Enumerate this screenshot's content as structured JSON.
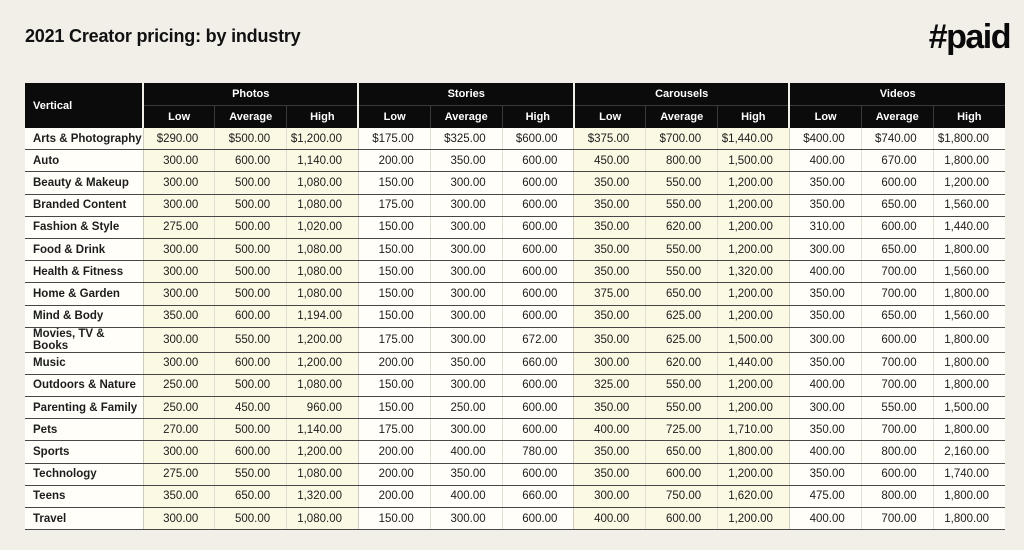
{
  "page": {
    "title": "2021 Creator pricing: by industry",
    "logo": "#paid"
  },
  "colors": {
    "background": "#f2efe9",
    "header_bg": "#0b0b0b",
    "header_text": "#ffffff",
    "tinted_column_bg": "#fbf8e3",
    "cell_bg": "#fffef9",
    "row_divider": "#474747",
    "text": "#1c1c1c"
  },
  "table": {
    "corner_header": "Vertical",
    "groups": [
      "Photos",
      "Stories",
      "Carousels",
      "Videos"
    ],
    "sub_columns": [
      "Low",
      "Average",
      "High"
    ],
    "tinted_groups": [
      "Photos",
      "Carousels"
    ],
    "rows": [
      {
        "label": "Arts & Photography",
        "values": [
          "$290.00",
          "$500.00",
          "$1,200.00",
          "$175.00",
          "$325.00",
          "$600.00",
          "$375.00",
          "$700.00",
          "$1,440.00",
          "$400.00",
          "$740.00",
          "$1,800.00"
        ]
      },
      {
        "label": "Auto",
        "values": [
          "300.00",
          "600.00",
          "1,140.00",
          "200.00",
          "350.00",
          "600.00",
          "450.00",
          "800.00",
          "1,500.00",
          "400.00",
          "670.00",
          "1,800.00"
        ]
      },
      {
        "label": "Beauty & Makeup",
        "values": [
          "300.00",
          "500.00",
          "1,080.00",
          "150.00",
          "300.00",
          "600.00",
          "350.00",
          "550.00",
          "1,200.00",
          "350.00",
          "600.00",
          "1,200.00"
        ]
      },
      {
        "label": "Branded Content",
        "values": [
          "300.00",
          "500.00",
          "1,080.00",
          "175.00",
          "300.00",
          "600.00",
          "350.00",
          "550.00",
          "1,200.00",
          "350.00",
          "650.00",
          "1,560.00"
        ]
      },
      {
        "label": "Fashion & Style",
        "values": [
          "275.00",
          "500.00",
          "1,020.00",
          "150.00",
          "300.00",
          "600.00",
          "350.00",
          "620.00",
          "1,200.00",
          "310.00",
          "600.00",
          "1,440.00"
        ]
      },
      {
        "label": "Food & Drink",
        "values": [
          "300.00",
          "500.00",
          "1,080.00",
          "150.00",
          "300.00",
          "600.00",
          "350.00",
          "550.00",
          "1,200.00",
          "300.00",
          "650.00",
          "1,800.00"
        ]
      },
      {
        "label": "Health & Fitness",
        "values": [
          "300.00",
          "500.00",
          "1,080.00",
          "150.00",
          "300.00",
          "600.00",
          "350.00",
          "550.00",
          "1,320.00",
          "400.00",
          "700.00",
          "1,560.00"
        ]
      },
      {
        "label": "Home & Garden",
        "values": [
          "300.00",
          "500.00",
          "1,080.00",
          "150.00",
          "300.00",
          "600.00",
          "375.00",
          "650.00",
          "1,200.00",
          "350.00",
          "700.00",
          "1,800.00"
        ]
      },
      {
        "label": "Mind & Body",
        "values": [
          "350.00",
          "600.00",
          "1,194.00",
          "150.00",
          "300.00",
          "600.00",
          "350.00",
          "625.00",
          "1,200.00",
          "350.00",
          "650.00",
          "1,560.00"
        ]
      },
      {
        "label": "Movies, TV & Books",
        "values": [
          "300.00",
          "550.00",
          "1,200.00",
          "175.00",
          "300.00",
          "672.00",
          "350.00",
          "625.00",
          "1,500.00",
          "300.00",
          "600.00",
          "1,800.00"
        ]
      },
      {
        "label": "Music",
        "values": [
          "300.00",
          "600.00",
          "1,200.00",
          "200.00",
          "350.00",
          "660.00",
          "300.00",
          "620.00",
          "1,440.00",
          "350.00",
          "700.00",
          "1,800.00"
        ]
      },
      {
        "label": "Outdoors & Nature",
        "values": [
          "250.00",
          "500.00",
          "1,080.00",
          "150.00",
          "300.00",
          "600.00",
          "325.00",
          "550.00",
          "1,200.00",
          "400.00",
          "700.00",
          "1,800.00"
        ]
      },
      {
        "label": "Parenting & Family",
        "values": [
          "250.00",
          "450.00",
          "960.00",
          "150.00",
          "250.00",
          "600.00",
          "350.00",
          "550.00",
          "1,200.00",
          "300.00",
          "550.00",
          "1,500.00"
        ]
      },
      {
        "label": "Pets",
        "values": [
          "270.00",
          "500.00",
          "1,140.00",
          "175.00",
          "300.00",
          "600.00",
          "400.00",
          "725.00",
          "1,710.00",
          "350.00",
          "700.00",
          "1,800.00"
        ]
      },
      {
        "label": "Sports",
        "values": [
          "300.00",
          "600.00",
          "1,200.00",
          "200.00",
          "400.00",
          "780.00",
          "350.00",
          "650.00",
          "1,800.00",
          "400.00",
          "800.00",
          "2,160.00"
        ]
      },
      {
        "label": "Technology",
        "values": [
          "275.00",
          "550.00",
          "1,080.00",
          "200.00",
          "350.00",
          "600.00",
          "350.00",
          "600.00",
          "1,200.00",
          "350.00",
          "600.00",
          "1,740.00"
        ]
      },
      {
        "label": "Teens",
        "values": [
          "350.00",
          "650.00",
          "1,320.00",
          "200.00",
          "400.00",
          "660.00",
          "300.00",
          "750.00",
          "1,620.00",
          "475.00",
          "800.00",
          "1,800.00"
        ]
      },
      {
        "label": "Travel",
        "values": [
          "300.00",
          "500.00",
          "1,080.00",
          "150.00",
          "300.00",
          "600.00",
          "400.00",
          "600.00",
          "1,200.00",
          "400.00",
          "700.00",
          "1,800.00"
        ]
      }
    ]
  }
}
